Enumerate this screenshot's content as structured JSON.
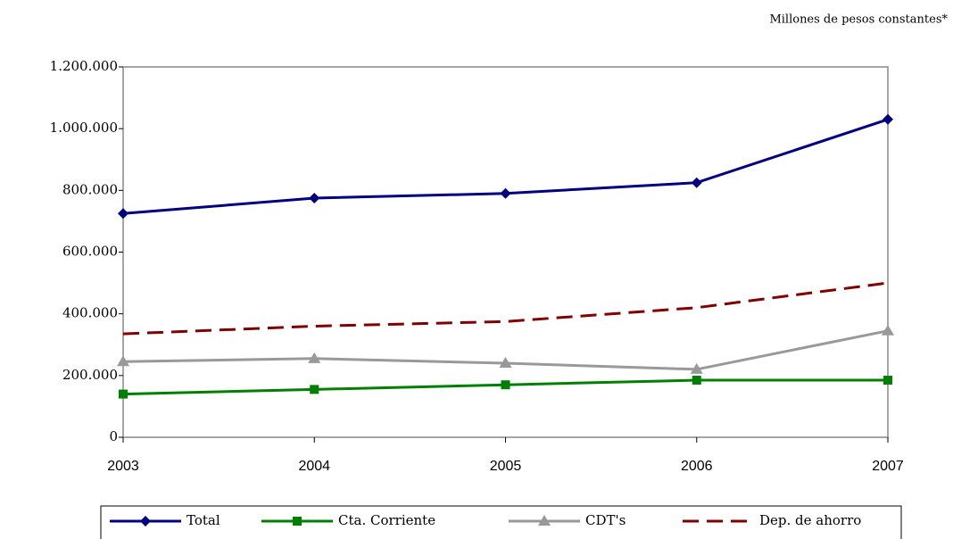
{
  "chart_data": {
    "type": "line",
    "subtitle": "Millones de pesos constantes*",
    "categories": [
      "2003",
      "2004",
      "2005",
      "2006",
      "2007"
    ],
    "series": [
      {
        "name": "Total",
        "color": "#000080",
        "marker": "diamond",
        "dash": false,
        "values": [
          725000,
          775000,
          790000,
          825000,
          1030000
        ]
      },
      {
        "name": "Cta. Corriente",
        "color": "#008000",
        "marker": "square",
        "dash": false,
        "values": [
          140000,
          155000,
          170000,
          185000,
          185000
        ]
      },
      {
        "name": "CDT's",
        "color": "#999999",
        "marker": "triangle",
        "dash": false,
        "values": [
          245000,
          255000,
          240000,
          220000,
          345000
        ]
      },
      {
        "name": "Dep. de ahorro",
        "color": "#800000",
        "marker": null,
        "dash": true,
        "values": [
          335000,
          360000,
          375000,
          420000,
          500000
        ]
      }
    ],
    "ylim": [
      0,
      1200000
    ],
    "yticks": [
      0,
      {
        "value": 200000,
        "label": "200.000"
      },
      {
        "value": 400000,
        "label": "400.000"
      },
      {
        "value": 600000,
        "label": "600.000"
      },
      {
        "value": 800000,
        "label": "800.000"
      },
      {
        "value": 1000000,
        "label": "1.000.000"
      },
      {
        "value": 1200000,
        "label": "1.200.000"
      }
    ],
    "grid": false
  }
}
